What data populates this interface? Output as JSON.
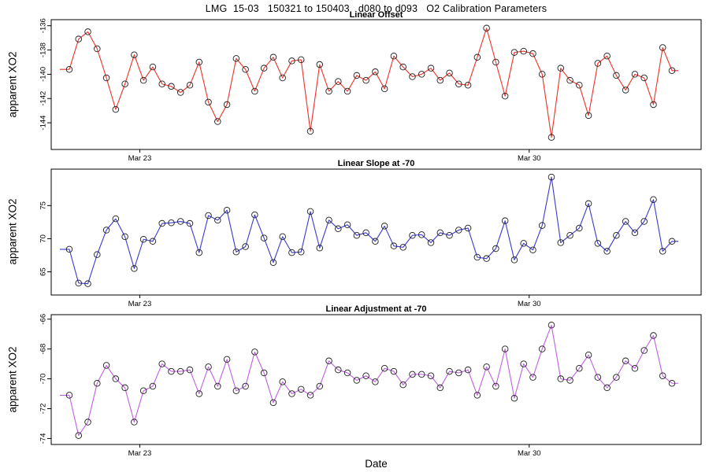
{
  "page_title": "LMG  15-03   150321 to 150403   d080 to d093   O2 Calibration Parameters",
  "x_axis_label": "Date",
  "marker_color": "#1f1f1f",
  "axis_color": "#000000",
  "chart_data": [
    {
      "type": "line",
      "title": "Linear Offset",
      "ylabel": "apparent XO2",
      "color": "#f03028",
      "ylim": [
        -146.2,
        -135.5
      ],
      "yticks": [
        -136,
        -138,
        -140,
        -142,
        -144
      ],
      "xticks": [
        {
          "index": 7.6,
          "label": "Mar 23"
        },
        {
          "index": 49.6,
          "label": "Mar 30"
        }
      ],
      "grid": false,
      "values": [
        -139.6,
        -137.1,
        -136.5,
        -137.9,
        -140.3,
        -142.9,
        -140.8,
        -138.4,
        -140.5,
        -139.4,
        -140.8,
        -141.0,
        -141.5,
        -140.9,
        -139.0,
        -142.3,
        -143.9,
        -142.5,
        -138.7,
        -139.6,
        -141.4,
        -139.5,
        -138.6,
        -140.3,
        -138.9,
        -138.8,
        -144.7,
        -139.2,
        -141.4,
        -140.6,
        -141.4,
        -140.1,
        -140.5,
        -139.8,
        -141.2,
        -138.5,
        -139.4,
        -140.2,
        -140.0,
        -139.5,
        -140.5,
        -139.9,
        -140.8,
        -140.9,
        -138.6,
        -136.2,
        -139.0,
        -141.8,
        -138.2,
        -138.1,
        -138.3,
        -140.0,
        -145.2,
        -139.5,
        -140.5,
        -140.9,
        -143.4,
        -139.1,
        -138.5,
        -140.1,
        -141.3,
        -140.0,
        -140.3,
        -142.5,
        -137.8,
        -139.7
      ]
    },
    {
      "type": "line",
      "title": "Linear Slope at -70",
      "ylabel": "apparent XO2",
      "color": "#3a3ad0",
      "ylim": [
        61.5,
        80.5
      ],
      "yticks": [
        65,
        70,
        75
      ],
      "xticks": [
        {
          "index": 7.6,
          "label": "Mar 23"
        },
        {
          "index": 49.6,
          "label": "Mar 30"
        }
      ],
      "grid": false,
      "values": [
        68.4,
        63.3,
        63.2,
        67.6,
        71.3,
        73.0,
        70.3,
        65.5,
        69.9,
        69.6,
        72.3,
        72.4,
        72.6,
        72.3,
        67.9,
        73.5,
        72.8,
        74.3,
        68.0,
        68.8,
        73.6,
        70.1,
        66.4,
        70.3,
        67.9,
        68.0,
        74.1,
        68.6,
        72.8,
        71.5,
        72.1,
        70.5,
        70.9,
        69.6,
        71.9,
        68.9,
        68.7,
        70.5,
        70.6,
        69.4,
        70.9,
        70.5,
        71.3,
        71.6,
        67.2,
        67.0,
        68.5,
        72.7,
        66.8,
        69.3,
        68.3,
        72.0,
        79.3,
        69.4,
        70.5,
        71.6,
        75.3,
        69.3,
        68.1,
        70.5,
        72.6,
        70.9,
        72.6,
        75.9,
        68.1,
        69.6
      ]
    },
    {
      "type": "line",
      "title": "Linear Adjustment at -70",
      "ylabel": "apparent XO2",
      "color": "#c05fe0",
      "ylim": [
        -74.4,
        -65.7
      ],
      "yticks": [
        -66,
        -68,
        -70,
        -72,
        -74
      ],
      "xticks": [
        {
          "index": 7.6,
          "label": "Mar 23"
        },
        {
          "index": 49.6,
          "label": "Mar 30"
        }
      ],
      "grid": false,
      "values": [
        -71.1,
        -73.8,
        -72.9,
        -70.3,
        -69.1,
        -70.0,
        -70.6,
        -72.9,
        -70.8,
        -70.5,
        -69.0,
        -69.5,
        -69.5,
        -69.4,
        -71.0,
        -69.2,
        -70.5,
        -68.7,
        -70.8,
        -70.5,
        -68.2,
        -69.6,
        -71.6,
        -70.2,
        -71.0,
        -70.7,
        -71.1,
        -70.5,
        -68.8,
        -69.4,
        -69.6,
        -70.1,
        -69.8,
        -70.2,
        -69.3,
        -69.5,
        -70.4,
        -69.7,
        -69.7,
        -69.8,
        -70.6,
        -69.5,
        -69.6,
        -69.4,
        -71.1,
        -69.2,
        -70.5,
        -68.0,
        -71.3,
        -69.0,
        -69.9,
        -68.0,
        -66.4,
        -70.0,
        -70.1,
        -69.3,
        -68.4,
        -69.9,
        -70.6,
        -69.9,
        -68.8,
        -69.3,
        -68.1,
        -67.1,
        -69.8,
        -70.3
      ]
    }
  ]
}
